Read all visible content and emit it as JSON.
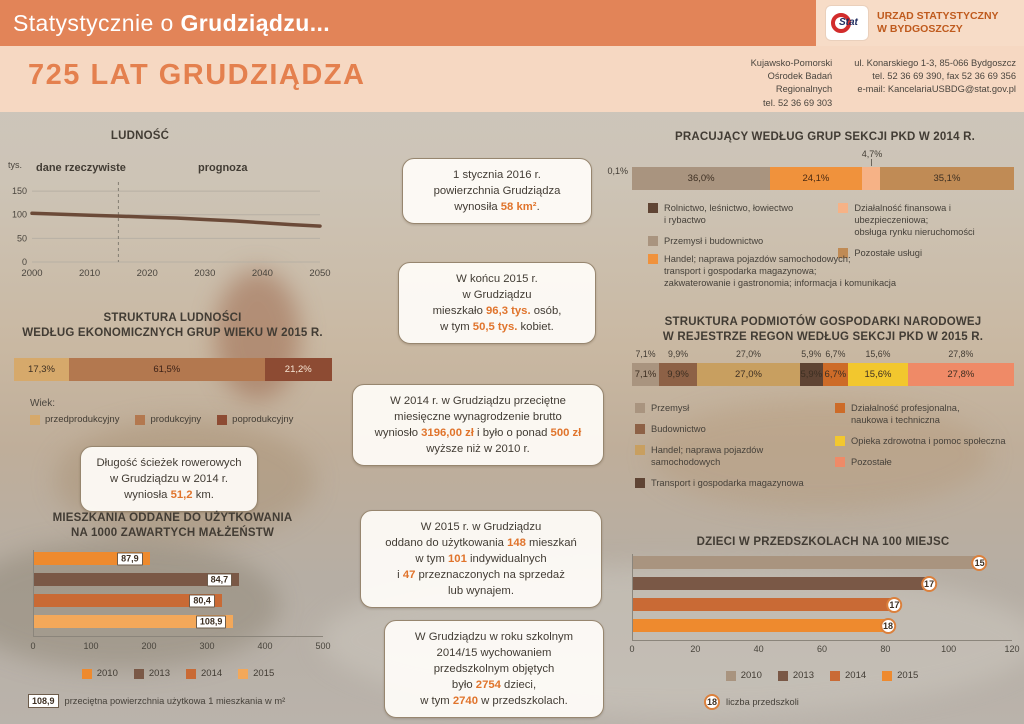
{
  "palette": {
    "header_bar": "#e28458",
    "header_light": "#f7dcc7",
    "accent_orange": "#e0742c",
    "title_text": "#423c34"
  },
  "header": {
    "title_normal": "Statystycznie o",
    "title_bold": "Grudziądzu...",
    "logo_text": "Stat",
    "office_line1": "URZĄD STATYSTYCZNY",
    "office_line2": "W BYDGOSZCZY",
    "subtitle": "725 LAT GRUDZIĄDZA",
    "contact_left": [
      "Kujawsko-Pomorski",
      "Ośrodek Badań",
      "Regionalnych",
      "tel. 52 36 69 303"
    ],
    "contact_right": [
      "ul. Konarskiego 1-3, 85-066 Bydgoszcz",
      "tel. 52 36 69 390, fax 52 36 69 356",
      "e-mail: KancelariaUSBDG@stat.gov.pl"
    ]
  },
  "info_boxes": [
    {
      "lines": [
        [
          {
            "t": "Długość ścieżek rowerowych"
          }
        ],
        [
          {
            "t": "w  Grudziądzu w 2014 r."
          }
        ],
        [
          {
            "t": "wyniosła "
          },
          {
            "t": "51,2",
            "hl": true
          },
          {
            "t": " km."
          }
        ]
      ]
    },
    {
      "lines": [
        [
          {
            "t": "1 stycznia 2016 r."
          }
        ],
        [
          {
            "t": "powierzchnia Grudziądza"
          }
        ],
        [
          {
            "t": "wynosiła "
          },
          {
            "t": "58 km²",
            "hl": true
          },
          {
            "t": "."
          }
        ]
      ]
    },
    {
      "lines": [
        [
          {
            "t": "W końcu 2015 r."
          }
        ],
        [
          {
            "t": "w Grudziądzu"
          }
        ],
        [
          {
            "t": "mieszkało "
          },
          {
            "t": "96,3 tys.",
            "hl": true
          },
          {
            "t": " osób,"
          }
        ],
        [
          {
            "t": "w tym "
          },
          {
            "t": "50,5 tys.",
            "hl": true
          },
          {
            "t": " kobiet."
          }
        ]
      ]
    },
    {
      "lines": [
        [
          {
            "t": "W 2014 r. w Grudziądzu przeciętne"
          }
        ],
        [
          {
            "t": "miesięczne wynagrodzenie brutto"
          }
        ],
        [
          {
            "t": "wyniosło "
          },
          {
            "t": "3196,00 zł",
            "hl": true
          },
          {
            "t": " i było o ponad "
          },
          {
            "t": "500 zł",
            "hl": true
          }
        ],
        [
          {
            "t": "wyższe niż w 2010 r."
          }
        ]
      ]
    },
    {
      "lines": [
        [
          {
            "t": "W 2015 r. w Grudziądzu"
          }
        ],
        [
          {
            "t": "oddano do użytkowania "
          },
          {
            "t": "148",
            "hl": true
          },
          {
            "t": " mieszkań"
          }
        ],
        [
          {
            "t": "w tym "
          },
          {
            "t": "101",
            "hl": true
          },
          {
            "t": " indywidualnych"
          }
        ],
        [
          {
            "t": "i "
          },
          {
            "t": "47",
            "hl": true
          },
          {
            "t": " przeznaczonych na sprzedaż"
          }
        ],
        [
          {
            "t": "lub wynajem."
          }
        ]
      ]
    },
    {
      "lines": [
        [
          {
            "t": "W Grudziądzu w roku szkolnym"
          }
        ],
        [
          {
            "t": "2014/15 wychowaniem"
          }
        ],
        [
          {
            "t": "przedszkolnym objętych"
          }
        ],
        [
          {
            "t": "było "
          },
          {
            "t": "2754",
            "hl": true
          },
          {
            "t": " dzieci,"
          }
        ],
        [
          {
            "t": "w tym "
          },
          {
            "t": "2740",
            "hl": true
          },
          {
            "t": " w przedszkolach."
          }
        ]
      ]
    }
  ],
  "chart_data": [
    {
      "id": "ludnosc",
      "type": "line",
      "title": "LUDNOŚĆ",
      "ylabel": "tys.",
      "annotation_left": "dane rzeczywiste",
      "annotation_right": "prognoza",
      "yticks": [
        150,
        100,
        50,
        0
      ],
      "xticks": [
        "2000",
        "2010",
        "2020",
        "2030",
        "2040",
        "2050"
      ],
      "xlim": [
        2000,
        2050
      ],
      "ylim": [
        0,
        165
      ],
      "divider_x": 2015,
      "series": [
        {
          "name": "ludność",
          "color": "#6b4a38",
          "x": [
            2000,
            2005,
            2010,
            2015,
            2020,
            2025,
            2030,
            2035,
            2040,
            2045,
            2050
          ],
          "values": [
            103,
            101,
            99,
            97,
            95,
            93,
            90,
            87,
            83,
            79,
            76
          ]
        }
      ]
    },
    {
      "id": "wiek",
      "type": "stacked-bar",
      "title_lines": [
        "STRUKTURA LUDNOŚCI",
        "WEDŁUG EKONOMICZNYCH GRUP WIEKU W 2015 R."
      ],
      "legend_title": "Wiek:",
      "segments": [
        {
          "label": "przedprodukcyjny",
          "value": 17.3,
          "display": "17,3%",
          "color": "#d6a96b",
          "text_color": "#3d2f22"
        },
        {
          "label": "produkcyjny",
          "value": 61.5,
          "display": "61,5%",
          "color": "#b3784f",
          "text_color": "#3d2217"
        },
        {
          "label": "poprodukcyjny",
          "value": 21.2,
          "display": "21,2%",
          "color": "#8d4b33",
          "text_color": "#f7e6d4"
        }
      ],
      "legend": [
        {
          "label": "przedprodukcyjny",
          "color": "#d6a96b"
        },
        {
          "label": "produkcyjny",
          "color": "#b3784f"
        },
        {
          "label": "poprodukcyjny",
          "color": "#8d4b33"
        }
      ]
    },
    {
      "id": "mieszkania",
      "type": "bar",
      "title_lines": [
        "MIESZKANIA ODDANE DO UŻYTKOWANIA",
        "NA 1000 ZAWARTYCH MAŁŻEŃSTW"
      ],
      "xlim": [
        0,
        500
      ],
      "xticks": [
        "0",
        "100",
        "200",
        "300",
        "400",
        "500"
      ],
      "bars": [
        {
          "year": "2010",
          "value": 200,
          "color": "#ee8a2e",
          "box_label": "87,9"
        },
        {
          "year": "2013",
          "value": 355,
          "color": "#7a5846",
          "box_label": "84,7"
        },
        {
          "year": "2014",
          "value": 325,
          "color": "#c96a35",
          "box_label": "80,4"
        },
        {
          "year": "2015",
          "value": 345,
          "color": "#f3a85a",
          "box_label": "108,9"
        }
      ],
      "legend": [
        {
          "label": "2010",
          "color": "#ee8a2e"
        },
        {
          "label": "2013",
          "color": "#7a5846"
        },
        {
          "label": "2014",
          "color": "#c96a35"
        },
        {
          "label": "2015",
          "color": "#f3a85a"
        }
      ],
      "footnote": {
        "box_label": "108,9",
        "text": "przeciętna powierzchnia użytkowa 1 mieszkania w m²"
      }
    },
    {
      "id": "pracujacy",
      "type": "stacked-bar",
      "title_lines": [
        "PRACUJĄCY WEDŁUG GRUP SEKCJI PKD W 2014 R."
      ],
      "segments": [
        {
          "label": "Rolnictwo, leśnictwo, łowiectwo i rybactwo",
          "value": 0.1,
          "display": "0,1%",
          "color": "#5f4434",
          "outside": "left"
        },
        {
          "label": "Przemysł i budownictwo",
          "value": 36.0,
          "display": "36,0%",
          "color": "#a9947f",
          "text_color": "#3d2f22"
        },
        {
          "label": "Handel; naprawa pojazdów samochodowych; transport i gospodarka magazynowa; zakwaterowanie i gastronomia; informacja i komunikacja",
          "value": 24.1,
          "display": "24,1%",
          "color": "#f0923c",
          "text_color": "#4a2a12"
        },
        {
          "label": "Działalność finansowa i ubezpieczeniowa; obsługa rynku nieruchomości",
          "value": 4.7,
          "display": "4,7%",
          "color": "#f6b286",
          "outside": "top"
        },
        {
          "label": "Pozostałe usługi",
          "value": 35.1,
          "display": "35,1%",
          "color": "#c08b55",
          "text_color": "#3d2f22"
        }
      ],
      "legend_cols": [
        [
          {
            "label": "Rolnictwo, leśnictwo, łowiectwo\ni rybactwo",
            "color": "#5f4434"
          },
          {
            "label": "Przemysł i budownictwo",
            "color": "#a9947f"
          }
        ],
        [
          {
            "label": "Działalność finansowa i ubezpieczeniowa;\nobsługa rynku nieruchomości",
            "color": "#f6b286"
          },
          {
            "label": "Pozostałe usługi",
            "color": "#c08b55"
          }
        ]
      ],
      "legend_extra": {
        "label": "Handel; naprawa pojazdów samochodowych;\ntransport i gospodarka magazynowa;\nzakwaterowanie i gastronomia; informacja i komunikacja",
        "color": "#f0923c"
      }
    },
    {
      "id": "regon",
      "type": "stacked-bar",
      "title_lines": [
        "STRUKTURA PODMIOTÓW GOSPODARKI NARODOWEJ",
        "W REJESTRZE REGON WEDŁUG SEKCJI PKD W 2015 R."
      ],
      "segments": [
        {
          "label": "Przemysł",
          "value": 7.1,
          "display": "7,1%",
          "color": "#a9947f"
        },
        {
          "label": "Budownictwo",
          "value": 9.9,
          "display": "9,9%",
          "color": "#8d6146"
        },
        {
          "label": "Handel; naprawa pojazdów samochodowych",
          "value": 27.0,
          "display": "27,0%",
          "color": "#c89f60"
        },
        {
          "label": "Transport i gospodarka magazynowa",
          "value": 5.9,
          "display": "5,9%",
          "color": "#5f4434"
        },
        {
          "label": "Działalność profesjonalna, naukowa i techniczna",
          "value": 6.7,
          "display": "6,7%",
          "color": "#cd6b28"
        },
        {
          "label": "Opieka zdrowotna i pomoc społeczna",
          "value": 15.6,
          "display": "15,6%",
          "color": "#f2c72e"
        },
        {
          "label": "Pozostałe",
          "value": 27.8,
          "display": "27,8%",
          "color": "#ef8a67"
        }
      ],
      "legend_cols": [
        [
          {
            "label": "Przemysł",
            "color": "#a9947f"
          },
          {
            "label": "Budownictwo",
            "color": "#8d6146"
          },
          {
            "label": "Handel; naprawa pojazdów\nsamochodowych",
            "color": "#c89f60"
          },
          {
            "label": "Transport i gospodarka magazynowa",
            "color": "#5f4434"
          }
        ],
        [
          {
            "label": "Działalność profesjonalna,\nnaukowa i techniczna",
            "color": "#cd6b28"
          },
          {
            "label": "Opieka zdrowotna i pomoc społeczna",
            "color": "#f2c72e"
          },
          {
            "label": "Pozostałe",
            "color": "#ef8a67"
          }
        ]
      ]
    },
    {
      "id": "przedszkola",
      "type": "bar",
      "title_lines": [
        "DZIECI W PRZEDSZKOLACH NA 100 MIEJSC"
      ],
      "xlim": [
        0,
        120
      ],
      "xticks": [
        "0",
        "20",
        "40",
        "60",
        "80",
        "100",
        "120"
      ],
      "bars": [
        {
          "year": "2010",
          "value": 110,
          "color": "#a9947f",
          "circle_label": "15"
        },
        {
          "year": "2013",
          "value": 94,
          "color": "#7a5846",
          "circle_label": "17"
        },
        {
          "year": "2014",
          "value": 83,
          "color": "#c96a35",
          "circle_label": "17"
        },
        {
          "year": "2015",
          "value": 81,
          "color": "#ee8a2e",
          "circle_label": "18"
        }
      ],
      "legend": [
        {
          "label": "2010",
          "color": "#a9947f"
        },
        {
          "label": "2013",
          "color": "#7a5846"
        },
        {
          "label": "2014",
          "color": "#c96a35"
        },
        {
          "label": "2015",
          "color": "#ee8a2e"
        }
      ],
      "footnote": {
        "circle_label": "18",
        "text": "liczba przedszkoli"
      }
    }
  ]
}
